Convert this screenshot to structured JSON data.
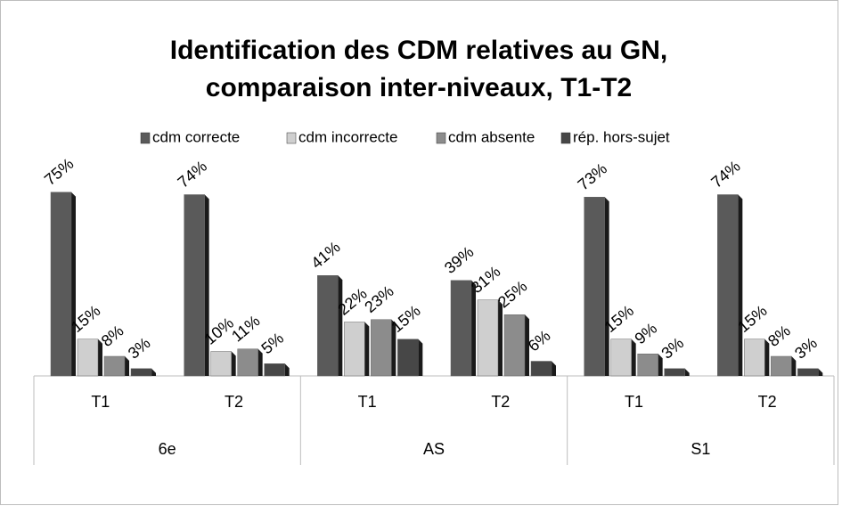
{
  "chart_data": {
    "type": "bar",
    "title": "Identification des CDM relatives au GN,",
    "subtitle": "comparaison inter-niveaux, T1-T2",
    "categories": [
      "T1",
      "T2",
      "T1",
      "T2",
      "T1",
      "T2"
    ],
    "category_groups": [
      "6e",
      "AS",
      "S1"
    ],
    "series": [
      {
        "name": "cdm correcte",
        "color": "#5a5a5a",
        "values": [
          75,
          74,
          41,
          39,
          73,
          74
        ],
        "value_labels": [
          "75%",
          "74%",
          "41%",
          "39%",
          "73%",
          "74%"
        ]
      },
      {
        "name": "cdm incorrecte",
        "color": "#cfcfcf",
        "values": [
          15,
          10,
          22,
          31,
          15,
          15
        ],
        "value_labels": [
          "15%",
          "10%",
          "22%",
          "31%",
          "15%",
          "15%"
        ]
      },
      {
        "name": "cdm absente",
        "color": "#8c8c8c",
        "values": [
          8,
          11,
          23,
          25,
          9,
          8
        ],
        "value_labels": [
          "8%",
          "11%",
          "23%",
          "25%",
          "9%",
          "8%"
        ]
      },
      {
        "name": "rép. hors-sujet",
        "color": "#474747",
        "values": [
          3,
          5,
          15,
          6,
          3,
          3
        ],
        "value_labels": [
          "3%",
          "5%",
          "15%",
          "6%",
          "3%",
          "3%"
        ]
      }
    ]
  }
}
